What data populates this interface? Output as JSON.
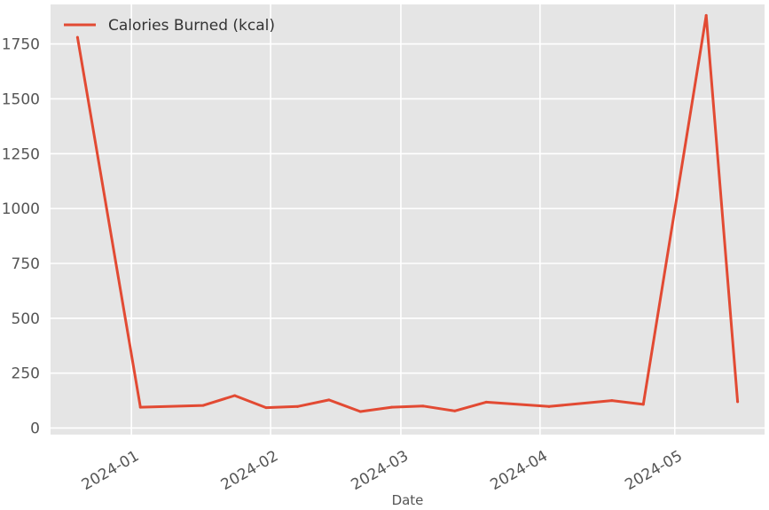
{
  "chart_data": {
    "type": "line",
    "title": "",
    "xlabel": "Date",
    "ylabel": "",
    "x_ticks": [
      {
        "date": "2024-01-01",
        "label": "2024-01"
      },
      {
        "date": "2024-02-01",
        "label": "2024-02"
      },
      {
        "date": "2024-03-01",
        "label": "2024-03"
      },
      {
        "date": "2024-04-01",
        "label": "2024-04"
      },
      {
        "date": "2024-05-01",
        "label": "2024-05"
      }
    ],
    "y_ticks": [
      0,
      250,
      500,
      750,
      1000,
      1250,
      1500,
      1750
    ],
    "xlim": [
      "2023-12-14",
      "2024-05-21"
    ],
    "ylim": [
      -30,
      1930
    ],
    "grid": true,
    "legend_position": "top-left",
    "colors": {
      "background": "#e5e5e5",
      "grid": "#ffffff",
      "line": "#e24a33"
    },
    "series": [
      {
        "name": "Calories Burned (kcal)",
        "points": [
          {
            "x": "2023-12-20",
            "y": 1780
          },
          {
            "x": "2024-01-03",
            "y": 95
          },
          {
            "x": "2024-01-17",
            "y": 103
          },
          {
            "x": "2024-01-24",
            "y": 148
          },
          {
            "x": "2024-01-31",
            "y": 93
          },
          {
            "x": "2024-02-07",
            "y": 98
          },
          {
            "x": "2024-02-14",
            "y": 128
          },
          {
            "x": "2024-02-21",
            "y": 75
          },
          {
            "x": "2024-02-28",
            "y": 95
          },
          {
            "x": "2024-03-06",
            "y": 100
          },
          {
            "x": "2024-03-13",
            "y": 78
          },
          {
            "x": "2024-03-20",
            "y": 118
          },
          {
            "x": "2024-04-03",
            "y": 98
          },
          {
            "x": "2024-04-17",
            "y": 125
          },
          {
            "x": "2024-04-24",
            "y": 108
          },
          {
            "x": "2024-05-08",
            "y": 1880
          },
          {
            "x": "2024-05-15",
            "y": 120
          }
        ]
      }
    ]
  }
}
